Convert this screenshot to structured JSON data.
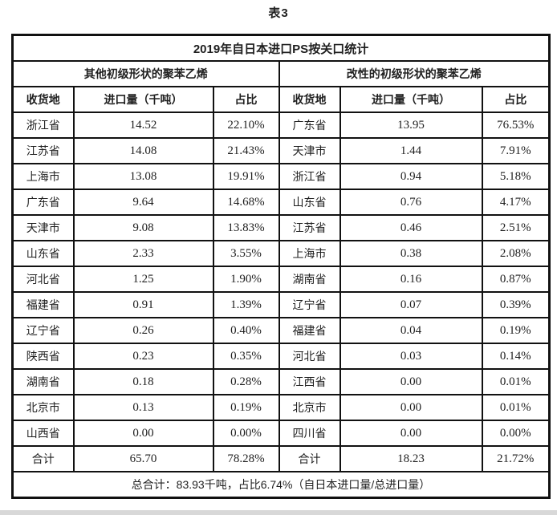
{
  "page_title": "表3",
  "table": {
    "title": "2019年自日本进口PS按关口统计",
    "group_headers": [
      "其他初级形状的聚苯乙烯",
      "改性的初级形状的聚苯乙烯"
    ],
    "column_headers": [
      "收货地",
      "进口量（千吨）",
      "占比",
      "收货地",
      "进口量（千吨）",
      "占比"
    ],
    "data_rows": [
      [
        "浙江省",
        "14.52",
        "22.10%",
        "广东省",
        "13.95",
        "76.53%"
      ],
      [
        "江苏省",
        "14.08",
        "21.43%",
        "天津市",
        "1.44",
        "7.91%"
      ],
      [
        "上海市",
        "13.08",
        "19.91%",
        "浙江省",
        "0.94",
        "5.18%"
      ],
      [
        "广东省",
        "9.64",
        "14.68%",
        "山东省",
        "0.76",
        "4.17%"
      ],
      [
        "天津市",
        "9.08",
        "13.83%",
        "江苏省",
        "0.46",
        "2.51%"
      ],
      [
        "山东省",
        "2.33",
        "3.55%",
        "上海市",
        "0.38",
        "2.08%"
      ],
      [
        "河北省",
        "1.25",
        "1.90%",
        "湖南省",
        "0.16",
        "0.87%"
      ],
      [
        "福建省",
        "0.91",
        "1.39%",
        "辽宁省",
        "0.07",
        "0.39%"
      ],
      [
        "辽宁省",
        "0.26",
        "0.40%",
        "福建省",
        "0.04",
        "0.19%"
      ],
      [
        "陕西省",
        "0.23",
        "0.35%",
        "河北省",
        "0.03",
        "0.14%"
      ],
      [
        "湖南省",
        "0.18",
        "0.28%",
        "江西省",
        "0.00",
        "0.01%"
      ],
      [
        "北京市",
        "0.13",
        "0.19%",
        "北京市",
        "0.00",
        "0.01%"
      ],
      [
        "山西省",
        "0.00",
        "0.00%",
        "四川省",
        "0.00",
        "0.00%"
      ]
    ],
    "total_row": [
      "合计",
      "65.70",
      "78.28%",
      "合计",
      "18.23",
      "21.72%"
    ],
    "grand_total": "总合计：83.93千吨，占比6.74%（自日本进口量/总进口量）"
  },
  "colors": {
    "border": "#111111",
    "text": "#1f1f1f",
    "page_bg": "#ffffff",
    "bottom_strip": "#d8d8d8"
  }
}
